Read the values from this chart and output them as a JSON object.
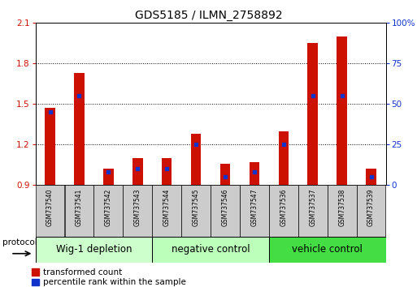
{
  "title": "GDS5185 / ILMN_2758892",
  "samples": [
    "GSM737540",
    "GSM737541",
    "GSM737542",
    "GSM737543",
    "GSM737544",
    "GSM737545",
    "GSM737546",
    "GSM737547",
    "GSM737536",
    "GSM737537",
    "GSM737538",
    "GSM737539"
  ],
  "red_values": [
    1.47,
    1.73,
    1.02,
    1.1,
    1.1,
    1.28,
    1.06,
    1.07,
    1.3,
    1.95,
    2.0,
    1.02
  ],
  "blue_values_pct": [
    45,
    55,
    8,
    10,
    10,
    25,
    5,
    8,
    25,
    55,
    55,
    5
  ],
  "ylim_left": [
    0.9,
    2.1
  ],
  "ylim_right": [
    0,
    100
  ],
  "yticks_left": [
    0.9,
    1.2,
    1.5,
    1.8,
    2.1
  ],
  "yticks_right": [
    0,
    25,
    50,
    75,
    100
  ],
  "ytick_labels_right": [
    "0",
    "25",
    "50",
    "75",
    "100%"
  ],
  "groups": [
    {
      "label": "Wig-1 depletion",
      "start": 0,
      "end": 3
    },
    {
      "label": "negative control",
      "start": 4,
      "end": 7
    },
    {
      "label": "vehicle control",
      "start": 8,
      "end": 11
    }
  ],
  "group_colors": [
    "#ccffcc",
    "#bbffbb",
    "#44dd44"
  ],
  "bar_color_red": "#cc1100",
  "bar_color_blue": "#1133cc",
  "bar_width": 0.35,
  "base_value": 0.9,
  "protocol_label": "protocol",
  "legend_red_label": "transformed count",
  "legend_blue_label": "percentile rank within the sample",
  "title_fontsize": 10,
  "tick_fontsize": 7.5,
  "group_label_fontsize": 8.5,
  "legend_fontsize": 7.5,
  "sample_label_bg": "#cccccc",
  "background_color": "#ffffff"
}
